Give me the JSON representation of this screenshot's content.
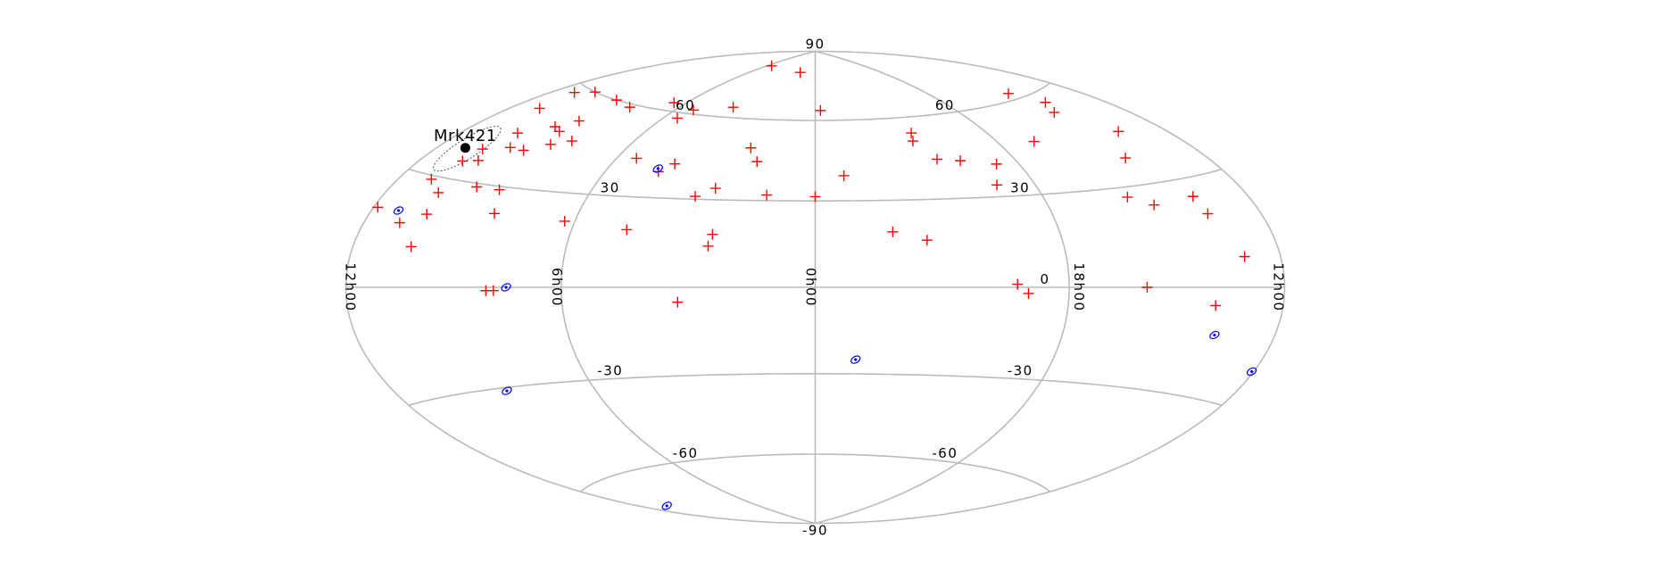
{
  "chart_data": {
    "type": "scatter",
    "projection": "hammer",
    "xlim": [
      180,
      -180
    ],
    "ylim": [
      -90,
      90
    ],
    "xticks": [
      {
        "value": 180,
        "label": "12h00"
      },
      {
        "value": 90,
        "label": "6h00"
      },
      {
        "value": 0,
        "label": "0h00"
      },
      {
        "value": -90,
        "label": "18h00"
      },
      {
        "value": -180,
        "label": "12h00"
      }
    ],
    "yticks": [
      -90,
      -60,
      -30,
      0,
      30,
      60,
      90
    ],
    "grid": true,
    "grid_color": "#bbbbbb",
    "series": [
      {
        "color": "#ff0000",
        "marker": "plus",
        "x": [
          83,
          23,
          -3.5,
          56,
          79,
          98,
          82,
          119,
          135,
          158,
          168,
          165,
          132,
          139,
          133,
          152,
          120,
          128,
          137,
          145,
          157,
          152,
          159,
          164,
          155,
          140,
          129,
          124,
          153,
          163,
          178,
          153,
          94,
          69,
          81,
          62,
          67,
          47,
          40,
          31,
          26,
          19,
          0,
          -12,
          37,
          38,
          -28,
          -40,
          -51,
          -49,
          -55,
          -65,
          -80,
          -74,
          -141,
          -149,
          -142,
          -108,
          -156,
          -141,
          -125,
          -134,
          -154,
          -155,
          -163,
          -120,
          -149,
          -71,
          -75,
          48,
          119,
          116
        ],
        "y": [
          81.5,
          80,
          64,
          64,
          61.5,
          63,
          58,
          59,
          60,
          60,
          58,
          52,
          52,
          49,
          48,
          45,
          46,
          44,
          41,
          41,
          39,
          36,
          35,
          29,
          26,
          29,
          29,
          22,
          20,
          17,
          20,
          11,
          21,
          19,
          43,
          42,
          39,
          31,
          34,
          49,
          44,
          32,
          31.5,
          39,
          18,
          14,
          19,
          16,
          54,
          51,
          44,
          43,
          41,
          34,
          62,
          57,
          54,
          47,
          45,
          38,
          27,
          24,
          25,
          20,
          8,
          0,
          -5,
          1,
          -2,
          -5,
          -1,
          -1
        ]
      },
      {
        "color": "#0000ff",
        "marker": "ellipse",
        "x": [
          167,
          111,
          68,
          -15,
          -152,
          -179,
          128,
          165
        ],
        "y": [
          20,
          0,
          40,
          -25,
          -13,
          -21,
          -31,
          -71
        ]
      }
    ],
    "annotations": [
      {
        "text": "Mrk421",
        "x": 166.1,
        "y": 38.2,
        "color": "#000000"
      }
    ]
  }
}
